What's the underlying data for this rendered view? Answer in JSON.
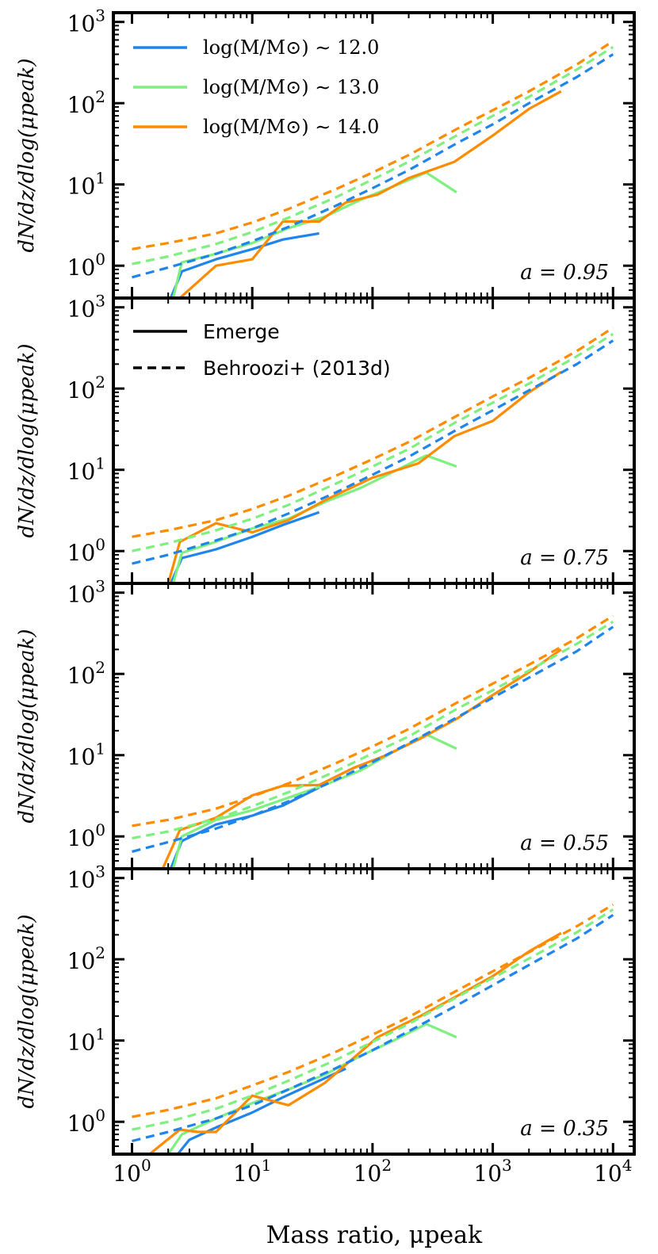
{
  "chart_data": {
    "type": "line",
    "xlabel": "Mass ratio, μpeak",
    "xscale": "log",
    "yscale": "log",
    "xlim": [
      0.7,
      15000
    ],
    "ylim": [
      0.4,
      1300
    ],
    "x_ticks": [
      1,
      10,
      100,
      1000,
      10000
    ],
    "x_tick_labels": [
      "10⁰",
      "10¹",
      "10²",
      "10³",
      "10⁴"
    ],
    "y_ticks": [
      1,
      10,
      100,
      1000
    ],
    "y_tick_labels": [
      "10⁰",
      "10¹",
      "10²",
      "10³"
    ],
    "colors": {
      "12.0": "#1f85ea",
      "13.0": "#7ff07f",
      "14.0": "#ff8c00"
    },
    "legend_mass": [
      {
        "label": "log(M/M⊙) ∼ 12.0",
        "color": "#1f85ea"
      },
      {
        "label": "log(M/M⊙) ∼ 13.0",
        "color": "#7ff07f"
      },
      {
        "label": "log(M/M⊙) ∼ 14.0",
        "color": "#ff8c00"
      }
    ],
    "legend_style": [
      {
        "label": "Emerge",
        "style": "solid"
      },
      {
        "label": "Behroozi+ (2013d)",
        "style": "dashed"
      }
    ],
    "panels": [
      {
        "annotation": "a = 0.95",
        "ylabel": "dN/dz/dlog(μpeak)",
        "series": [
          {
            "mass": "12.0",
            "style": "solid",
            "x": [
              2.1,
              2.6,
              5,
              10,
              18,
              36
            ],
            "y": [
              0.4,
              0.85,
              1.2,
              1.6,
              2.1,
              2.5
            ]
          },
          {
            "mass": "13.0",
            "style": "solid",
            "x": [
              2.2,
              2.6,
              5,
              10,
              20,
              40,
              80,
              150,
              280,
              500
            ],
            "y": [
              0.4,
              1.1,
              1.4,
              1.9,
              2.9,
              4.0,
              6.5,
              9.5,
              14,
              8
            ]
          },
          {
            "mass": "14.0",
            "style": "solid",
            "x": [
              2.5,
              5,
              10,
              18,
              36,
              60,
              110,
              200,
              480,
              1000,
              2000,
              3700
            ],
            "y": [
              0.4,
              1.0,
              1.2,
              3.5,
              3.5,
              6.0,
              7.5,
              12,
              19,
              40,
              85,
              140
            ]
          },
          {
            "mass": "12.0",
            "style": "dashed",
            "x": [
              1,
              2,
              5,
              10,
              20,
              50,
              100,
              200,
              500,
              1000,
              2000,
              5000,
              10000
            ],
            "y": [
              0.72,
              0.95,
              1.4,
              2.0,
              3.0,
              5.5,
              9,
              15,
              32,
              55,
              100,
              210,
              400
            ]
          },
          {
            "mass": "13.0",
            "style": "dashed",
            "x": [
              1,
              2,
              5,
              10,
              20,
              50,
              100,
              200,
              500,
              1000,
              2000,
              5000,
              10000
            ],
            "y": [
              1.05,
              1.3,
              1.85,
              2.6,
              3.9,
              7,
              11.5,
              19,
              40,
              70,
              120,
              260,
              490
            ]
          },
          {
            "mass": "14.0",
            "style": "dashed",
            "x": [
              1,
              2,
              5,
              10,
              20,
              50,
              100,
              200,
              500,
              1000,
              2000,
              5000,
              10000
            ],
            "y": [
              1.6,
              1.9,
              2.5,
              3.4,
              5.0,
              8.8,
              14,
              23,
              48,
              82,
              140,
              300,
              580
            ]
          }
        ]
      },
      {
        "annotation": "a = 0.75",
        "ylabel": "dN/dz/dlog(μpeak)",
        "series": [
          {
            "mass": "12.0",
            "style": "solid",
            "x": [
              2.1,
              2.6,
              5,
              10,
              18,
              36
            ],
            "y": [
              0.4,
              0.82,
              1.05,
              1.5,
              2.1,
              3.0
            ]
          },
          {
            "mass": "13.0",
            "style": "solid",
            "x": [
              2.2,
              2.6,
              5,
              10,
              20,
              40,
              80,
              150,
              280,
              500
            ],
            "y": [
              0.4,
              0.95,
              1.3,
              1.9,
              2.5,
              4.0,
              6.0,
              9.5,
              15,
              11
            ]
          },
          {
            "mass": "14.0",
            "style": "solid",
            "x": [
              2,
              2.5,
              5,
              10,
              20,
              40,
              100,
              240,
              480,
              1000,
              2000,
              3700
            ],
            "y": [
              0.4,
              1.3,
              2.2,
              1.7,
              2.4,
              4.2,
              8.0,
              12,
              26,
              40,
              90,
              160
            ]
          },
          {
            "mass": "12.0",
            "style": "dashed",
            "x": [
              1,
              2,
              5,
              10,
              20,
              50,
              100,
              200,
              500,
              1000,
              2000,
              5000,
              10000
            ],
            "y": [
              0.7,
              0.9,
              1.35,
              1.9,
              2.9,
              5.3,
              8.7,
              14.5,
              31,
              54,
              95,
              200,
              390
            ]
          },
          {
            "mass": "13.0",
            "style": "dashed",
            "x": [
              1,
              2,
              5,
              10,
              20,
              50,
              100,
              200,
              500,
              1000,
              2000,
              5000,
              10000
            ],
            "y": [
              1.0,
              1.25,
              1.8,
              2.5,
              3.7,
              6.8,
              11,
              18,
              39,
              67,
              115,
              250,
              470
            ]
          },
          {
            "mass": "14.0",
            "style": "dashed",
            "x": [
              1,
              2,
              5,
              10,
              20,
              50,
              100,
              200,
              500,
              1000,
              2000,
              5000,
              10000
            ],
            "y": [
              1.5,
              1.8,
              2.4,
              3.3,
              4.8,
              8.5,
              13.5,
              22,
              46,
              80,
              135,
              290,
              560
            ]
          }
        ]
      },
      {
        "annotation": "a = 0.55",
        "ylabel": "dN/dz/dlog(μpeak)",
        "series": [
          {
            "mass": "12.0",
            "style": "solid",
            "x": [
              2.1,
              2.6,
              5,
              10,
              18,
              36
            ],
            "y": [
              0.4,
              0.88,
              1.4,
              1.8,
              2.4,
              4.0
            ]
          },
          {
            "mass": "13.0",
            "style": "solid",
            "x": [
              2.2,
              2.6,
              5,
              10,
              20,
              40,
              80,
              150,
              280,
              500
            ],
            "y": [
              0.4,
              1.0,
              1.6,
              2.1,
              3.0,
              4.3,
              6.5,
              11,
              18,
              12
            ]
          },
          {
            "mass": "14.0",
            "style": "solid",
            "x": [
              1.8,
              2.5,
              5,
              10,
              18,
              36,
              70,
              130,
              250,
              500,
              1000,
              2000,
              3700
            ],
            "y": [
              0.4,
              1.2,
              1.7,
              3.2,
              4.2,
              4.3,
              7.0,
              10,
              16,
              28,
              55,
              105,
              200
            ]
          },
          {
            "mass": "12.0",
            "style": "dashed",
            "x": [
              1,
              2,
              5,
              10,
              20,
              50,
              100,
              200,
              500,
              1000,
              2000,
              5000,
              10000
            ],
            "y": [
              0.65,
              0.85,
              1.25,
              1.8,
              2.7,
              5.0,
              8.2,
              14,
              29,
              51,
              90,
              190,
              380
            ]
          },
          {
            "mass": "13.0",
            "style": "dashed",
            "x": [
              1,
              2,
              5,
              10,
              20,
              50,
              100,
              200,
              500,
              1000,
              2000,
              5000,
              10000
            ],
            "y": [
              0.95,
              1.15,
              1.65,
              2.35,
              3.5,
              6.4,
              10.5,
              17,
              37,
              63,
              110,
              235,
              440
            ]
          },
          {
            "mass": "14.0",
            "style": "dashed",
            "x": [
              1,
              2,
              5,
              10,
              20,
              50,
              100,
              200,
              500,
              1000,
              2000,
              5000,
              10000
            ],
            "y": [
              1.35,
              1.6,
              2.2,
              3.1,
              4.5,
              8.0,
              12.8,
              21,
              44,
              76,
              130,
              275,
              520
            ]
          }
        ]
      },
      {
        "annotation": "a = 0.35",
        "ylabel": "dN/dz/dlog(μpeak)",
        "series": [
          {
            "mass": "12.0",
            "style": "solid",
            "x": [
              2.4,
              3,
              5,
              10,
              18,
              36,
              60
            ],
            "y": [
              0.4,
              0.6,
              0.85,
              1.3,
              2.0,
              3.2,
              4.5
            ]
          },
          {
            "mass": "13.0",
            "style": "solid",
            "x": [
              2,
              2.6,
              5,
              10,
              20,
              40,
              80,
              150,
              280,
              500
            ],
            "y": [
              0.4,
              0.7,
              1.1,
              1.7,
              2.5,
              3.8,
              6.5,
              10,
              16,
              11
            ]
          },
          {
            "mass": "14.0",
            "style": "solid",
            "x": [
              1.4,
              2.5,
              3.5,
              5,
              10,
              20,
              40,
              110,
              250,
              500,
              1000,
              2000,
              3700
            ],
            "y": [
              0.4,
              0.8,
              0.75,
              0.75,
              2.1,
              1.6,
              3.0,
              11,
              20,
              35,
              62,
              125,
              210
            ]
          },
          {
            "mass": "12.0",
            "style": "dashed",
            "x": [
              1,
              2,
              5,
              10,
              20,
              50,
              100,
              200,
              500,
              1000,
              2000,
              5000,
              10000
            ],
            "y": [
              0.58,
              0.75,
              1.1,
              1.6,
              2.5,
              4.6,
              7.6,
              13,
              27,
              48,
              85,
              180,
              350
            ]
          },
          {
            "mass": "13.0",
            "style": "dashed",
            "x": [
              1,
              2,
              5,
              10,
              20,
              50,
              100,
              200,
              500,
              1000,
              2000,
              5000,
              10000
            ],
            "y": [
              0.8,
              1.0,
              1.45,
              2.1,
              3.2,
              5.8,
              9.6,
              16,
              34,
              59,
              102,
              215,
              410
            ]
          },
          {
            "mass": "14.0",
            "style": "dashed",
            "x": [
              1,
              2,
              5,
              10,
              20,
              50,
              100,
              200,
              500,
              1000,
              2000,
              5000,
              10000
            ],
            "y": [
              1.15,
              1.4,
              1.95,
              2.8,
              4.1,
              7.3,
              11.8,
              19.5,
              41,
              71,
              122,
              255,
              470
            ]
          }
        ]
      }
    ]
  }
}
